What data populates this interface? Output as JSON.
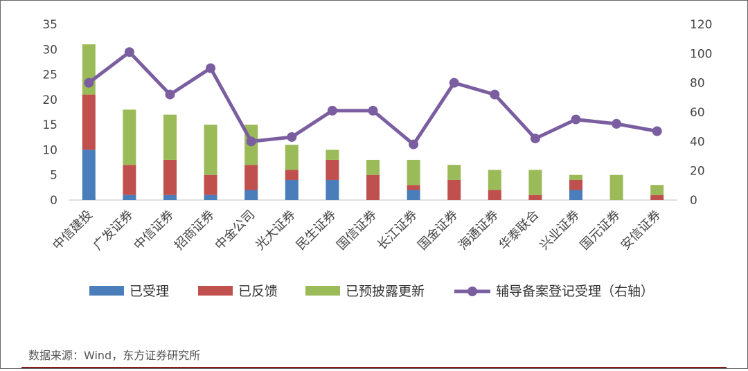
{
  "chart_data": {
    "type": "bar",
    "stacked": true,
    "categories": [
      "中信建投",
      "广发证券",
      "中信证券",
      "招商证券",
      "中金公司",
      "光大证券",
      "民生证券",
      "国信证券",
      "长江证券",
      "国金证券",
      "海通证券",
      "华泰联合",
      "兴业证券",
      "国元证券",
      "安信证券"
    ],
    "series": [
      {
        "name": "已受理",
        "type": "bar",
        "color": "#4a7ebb",
        "values": [
          10,
          1,
          1,
          1,
          2,
          4,
          4,
          0,
          2,
          0,
          0,
          0,
          2,
          0,
          0
        ]
      },
      {
        "name": "已反馈",
        "type": "bar",
        "color": "#c0504d",
        "values": [
          11,
          6,
          7,
          4,
          5,
          2,
          4,
          5,
          1,
          4,
          2,
          1,
          2,
          0,
          1
        ]
      },
      {
        "name": "已预披露更新",
        "type": "bar",
        "color": "#9bbb59",
        "values": [
          10,
          11,
          9,
          10,
          8,
          5,
          2,
          3,
          5,
          3,
          4,
          5,
          1,
          5,
          2
        ]
      },
      {
        "name": "辅导备案登记受理（右轴）",
        "type": "line",
        "axis": "right",
        "color": "#7a5ea0",
        "values": [
          80,
          101,
          72,
          90,
          40,
          43,
          61,
          61,
          38,
          80,
          72,
          42,
          55,
          52,
          47
        ]
      }
    ],
    "ylim_left": [
      0,
      35
    ],
    "yticks_left": [
      0,
      5,
      10,
      15,
      20,
      25,
      30,
      35
    ],
    "ylim_right": [
      0,
      120
    ],
    "yticks_right": [
      0,
      20,
      40,
      60,
      80,
      100,
      120
    ],
    "legend_position": "bottom"
  },
  "source_note": "数据来源：Wind，东方证券研究所"
}
